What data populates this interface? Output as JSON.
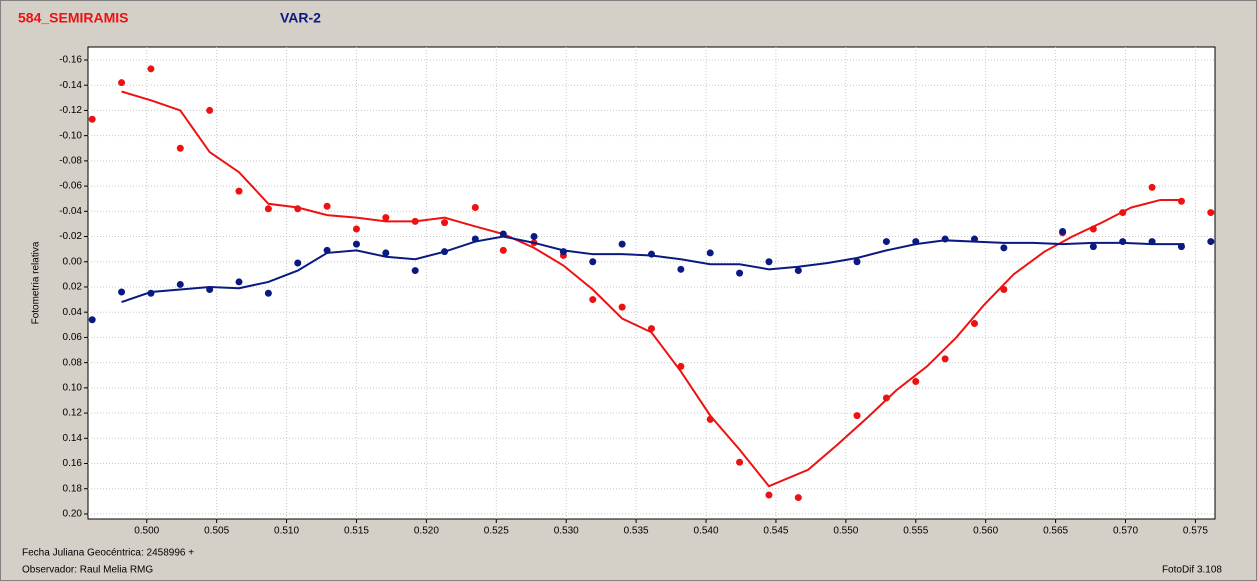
{
  "chart_data": {
    "type": "scatter",
    "y_label": "Fotometria relativa",
    "footer": [
      "Fecha Juliana Geocéntrica: 2458996 +",
      "Observador: Raul Melia RMG"
    ],
    "software": "FotoDif 3.108",
    "invert_y": true,
    "grid": true,
    "xlim": [
      0.4958,
      0.5764
    ],
    "ylim": [
      -0.1703,
      0.204
    ],
    "xticks": [
      {
        "value": 0.5,
        "label": "0.500"
      },
      {
        "value": 0.505,
        "label": "0.505"
      },
      {
        "value": 0.51,
        "label": "0.510"
      },
      {
        "value": 0.515,
        "label": "0.515"
      },
      {
        "value": 0.52,
        "label": "0.520"
      },
      {
        "value": 0.525,
        "label": "0.525"
      },
      {
        "value": 0.53,
        "label": "0.530"
      },
      {
        "value": 0.535,
        "label": "0.535"
      },
      {
        "value": 0.54,
        "label": "0.540"
      },
      {
        "value": 0.545,
        "label": "0.545"
      },
      {
        "value": 0.55,
        "label": "0.550"
      },
      {
        "value": 0.555,
        "label": "0.555"
      },
      {
        "value": 0.56,
        "label": "0.560"
      },
      {
        "value": 0.565,
        "label": "0.565"
      },
      {
        "value": 0.57,
        "label": "0.570"
      },
      {
        "value": 0.575,
        "label": "0.575"
      }
    ],
    "yticks": [
      {
        "value": -0.16,
        "label": "-0.16"
      },
      {
        "value": -0.14,
        "label": "-0.14"
      },
      {
        "value": -0.12,
        "label": "-0.12"
      },
      {
        "value": -0.1,
        "label": "-0.10"
      },
      {
        "value": -0.08,
        "label": "-0.08"
      },
      {
        "value": -0.06,
        "label": "-0.06"
      },
      {
        "value": -0.04,
        "label": "-0.04"
      },
      {
        "value": -0.02,
        "label": "-0.02"
      },
      {
        "value": 0,
        "label": "0.00"
      },
      {
        "value": 0.02,
        "label": "0.02"
      },
      {
        "value": 0.04,
        "label": "0.04"
      },
      {
        "value": 0.06,
        "label": "0.06"
      },
      {
        "value": 0.08,
        "label": "0.08"
      },
      {
        "value": 0.1,
        "label": "0.10"
      },
      {
        "value": 0.12,
        "label": "0.12"
      },
      {
        "value": 0.14,
        "label": "0.14"
      },
      {
        "value": 0.16,
        "label": "0.16"
      },
      {
        "value": 0.18,
        "label": "0.18"
      },
      {
        "value": 0.2,
        "label": "0.20"
      }
    ],
    "series": [
      {
        "name": "584_SEMIRAMIS",
        "color": "#ee1111",
        "x": [
          0.4961,
          0.4982,
          0.5003,
          0.5024,
          0.5045,
          0.5066,
          0.5087,
          0.5108,
          0.5129,
          0.515,
          0.5171,
          0.5192,
          0.5213,
          0.5235,
          0.5255,
          0.5277,
          0.5298,
          0.5319,
          0.534,
          0.5361,
          0.5382,
          0.5403,
          0.5424,
          0.5445,
          0.5466,
          0.5508,
          0.5529,
          0.555,
          0.5571,
          0.5592,
          0.5613,
          0.5655,
          0.5677,
          0.5698,
          0.5719,
          0.574,
          0.5761
        ],
        "values": [
          -0.113,
          -0.142,
          -0.153,
          -0.09,
          -0.12,
          -0.056,
          -0.042,
          -0.042,
          -0.044,
          -0.026,
          -0.035,
          -0.032,
          -0.031,
          -0.043,
          -0.009,
          -0.015,
          -0.005,
          0.03,
          0.036,
          0.053,
          0.083,
          0.125,
          0.159,
          0.185,
          0.187,
          0.122,
          0.108,
          0.095,
          0.077,
          0.049,
          0.022,
          -0.023,
          -0.026,
          -0.039,
          -0.059,
          -0.048,
          -0.039
        ],
        "fit": {
          "x": [
            0.4982,
            0.5003,
            0.5024,
            0.5045,
            0.5066,
            0.5087,
            0.5108,
            0.5129,
            0.515,
            0.5171,
            0.5192,
            0.5213,
            0.5235,
            0.5255,
            0.5277,
            0.5298,
            0.5319,
            0.534,
            0.5361,
            0.5382,
            0.5403,
            0.5424,
            0.5445,
            0.5473,
            0.5494,
            0.5516,
            0.5536,
            0.5558,
            0.5579,
            0.5599,
            0.562,
            0.5642,
            0.5662,
            0.5683,
            0.5704,
            0.5725,
            0.5742
          ],
          "values": [
            -0.135,
            -0.128,
            -0.12,
            -0.087,
            -0.071,
            -0.046,
            -0.043,
            -0.037,
            -0.035,
            -0.032,
            -0.032,
            -0.035,
            -0.028,
            -0.022,
            -0.011,
            0.003,
            0.022,
            0.045,
            0.056,
            0.087,
            0.122,
            0.149,
            0.178,
            0.165,
            0.145,
            0.123,
            0.102,
            0.083,
            0.06,
            0.034,
            0.01,
            -0.008,
            -0.02,
            -0.031,
            -0.043,
            -0.049,
            -0.049
          ]
        }
      },
      {
        "name": "VAR-2",
        "color": "#0a1a80",
        "x": [
          0.4961,
          0.4982,
          0.5003,
          0.5024,
          0.5045,
          0.5066,
          0.5087,
          0.5108,
          0.5129,
          0.515,
          0.5171,
          0.5192,
          0.5213,
          0.5235,
          0.5255,
          0.5277,
          0.5298,
          0.5319,
          0.534,
          0.5361,
          0.5382,
          0.5403,
          0.5424,
          0.5445,
          0.5466,
          0.5508,
          0.5529,
          0.555,
          0.5571,
          0.5592,
          0.5613,
          0.5655,
          0.5677,
          0.5698,
          0.5719,
          0.574,
          0.5761
        ],
        "values": [
          0.046,
          0.024,
          0.025,
          0.018,
          0.022,
          0.016,
          0.025,
          0.001,
          -0.009,
          -0.014,
          -0.007,
          0.007,
          -0.008,
          -0.018,
          -0.022,
          -0.02,
          -0.008,
          0.0,
          -0.014,
          -0.006,
          0.006,
          -0.007,
          0.009,
          0.0,
          0.007,
          0.0,
          -0.016,
          -0.016,
          -0.018,
          -0.018,
          -0.011,
          -0.024,
          -0.012,
          -0.016,
          -0.016,
          -0.012,
          -0.016
        ],
        "fit": {
          "x": [
            0.4982,
            0.5003,
            0.5024,
            0.5045,
            0.5066,
            0.5087,
            0.5108,
            0.5129,
            0.515,
            0.5171,
            0.5192,
            0.5213,
            0.5235,
            0.5255,
            0.5277,
            0.5298,
            0.5319,
            0.534,
            0.5361,
            0.5382,
            0.5403,
            0.5424,
            0.5445,
            0.5466,
            0.5487,
            0.5508,
            0.5529,
            0.555,
            0.5571,
            0.5592,
            0.5613,
            0.5634,
            0.5655,
            0.5677,
            0.5698,
            0.5719,
            0.5742
          ],
          "values": [
            0.032,
            0.024,
            0.022,
            0.02,
            0.021,
            0.016,
            0.007,
            -0.007,
            -0.009,
            -0.004,
            -0.002,
            -0.008,
            -0.016,
            -0.02,
            -0.015,
            -0.009,
            -0.006,
            -0.006,
            -0.005,
            -0.002,
            0.002,
            0.002,
            0.006,
            0.004,
            0.001,
            -0.003,
            -0.009,
            -0.014,
            -0.017,
            -0.016,
            -0.015,
            -0.015,
            -0.014,
            -0.015,
            -0.015,
            -0.014,
            -0.014
          ]
        }
      }
    ]
  }
}
